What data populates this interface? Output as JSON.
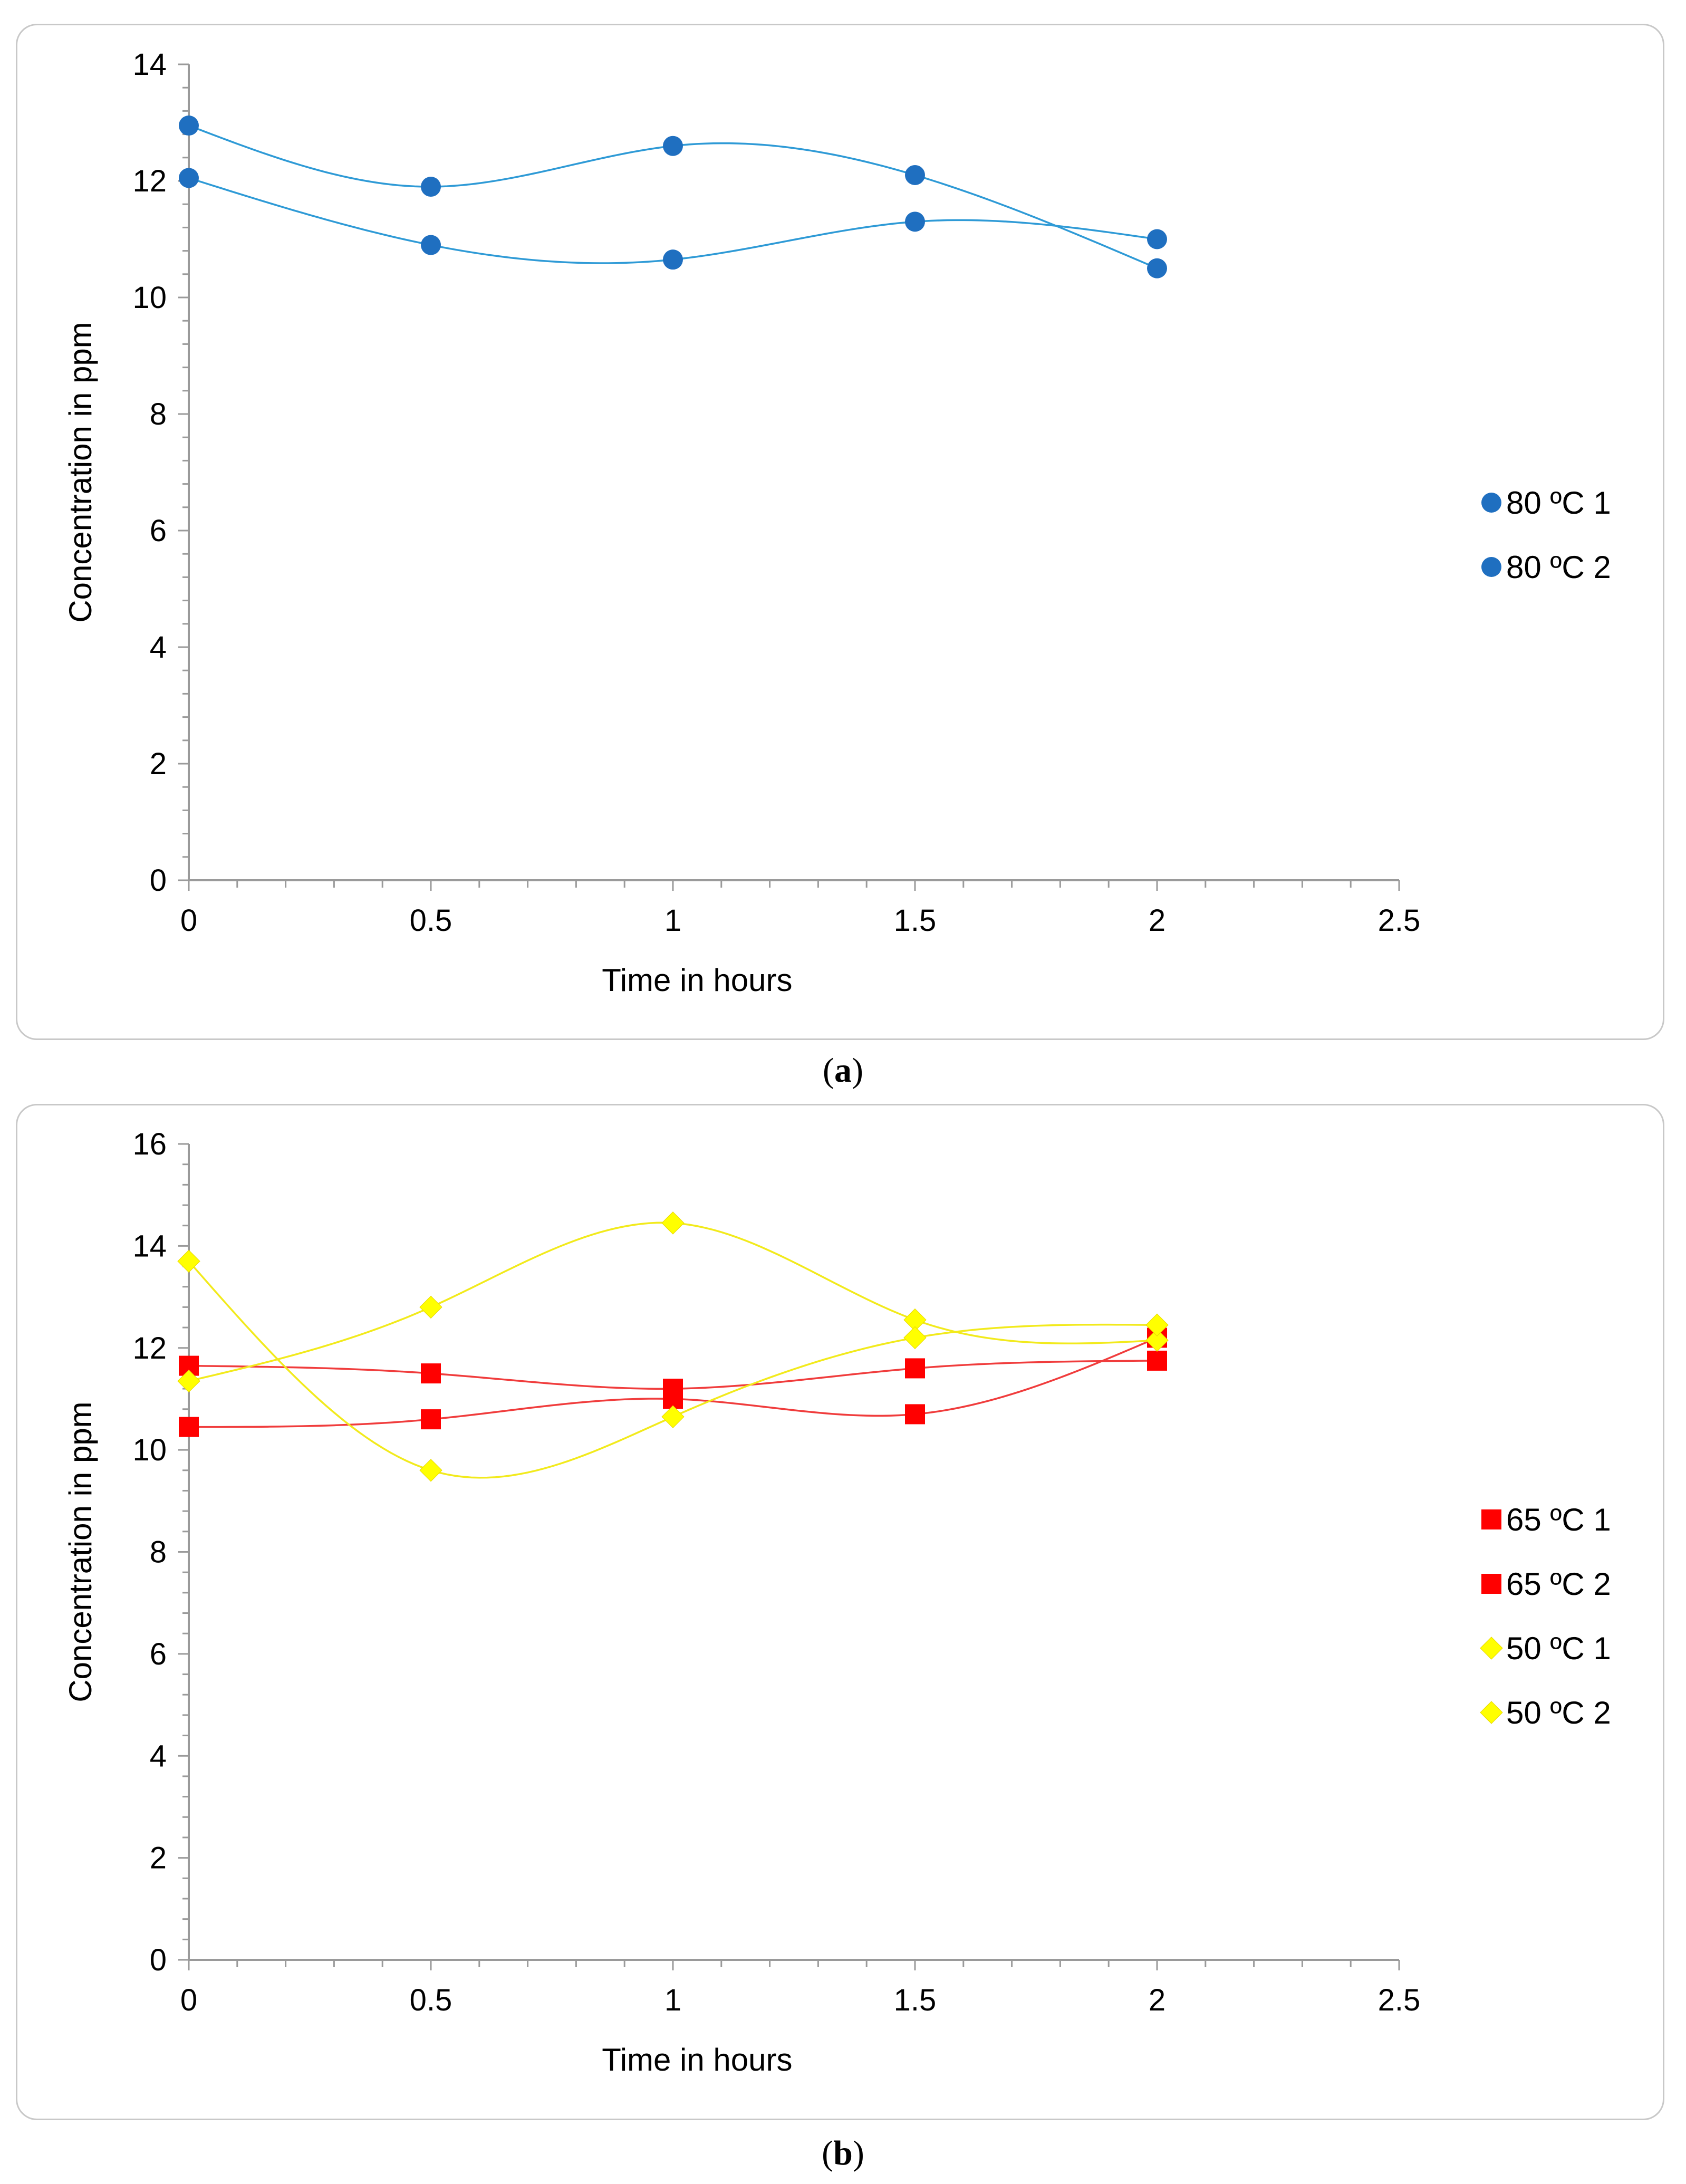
{
  "chart_data": [
    {
      "panel": "a",
      "type": "scatter",
      "caption_letter": "a",
      "xlabel": "Time in hours",
      "ylabel": "Concentration in ppm",
      "xlim": [
        0,
        2.5
      ],
      "ylim": [
        0,
        14
      ],
      "xticks": [
        "0",
        "0.5",
        "1",
        "1.5",
        "2",
        "2.5"
      ],
      "yticks": [
        "0",
        "2",
        "4",
        "6",
        "8",
        "10",
        "12",
        "14"
      ],
      "xtick_values": [
        0,
        0.5,
        1,
        1.5,
        2,
        2.5
      ],
      "ytick_values": [
        0,
        2,
        4,
        6,
        8,
        10,
        12,
        14
      ],
      "legend_position": "right",
      "series": [
        {
          "name": "80 ºC 1",
          "marker": "circle",
          "color": "#1f6fc0",
          "line_color": "#2e9ad6",
          "x": [
            0,
            0.5,
            1,
            1.5,
            2
          ],
          "y": [
            12.95,
            11.9,
            12.6,
            12.1,
            10.5
          ]
        },
        {
          "name": "80 ºC 2",
          "marker": "circle",
          "color": "#1f6fc0",
          "line_color": "#2e9ad6",
          "x": [
            0,
            0.5,
            1,
            1.5,
            2
          ],
          "y": [
            12.05,
            10.9,
            10.65,
            11.3,
            11.0
          ]
        }
      ]
    },
    {
      "panel": "b",
      "type": "scatter",
      "caption_letter": "b",
      "xlabel": "Time in hours",
      "ylabel": "Concentration in ppm",
      "xlim": [
        0,
        2.5
      ],
      "ylim": [
        0,
        16
      ],
      "xticks": [
        "0",
        "0.5",
        "1",
        "1.5",
        "2",
        "2.5"
      ],
      "yticks": [
        "0",
        "2",
        "4",
        "6",
        "8",
        "10",
        "12",
        "14",
        "16"
      ],
      "xtick_values": [
        0,
        0.5,
        1,
        1.5,
        2,
        2.5
      ],
      "ytick_values": [
        0,
        2,
        4,
        6,
        8,
        10,
        12,
        14,
        16
      ],
      "legend_position": "right",
      "series": [
        {
          "name": "65 ºC 1",
          "marker": "square",
          "color": "#ff0000",
          "line_color": "#f03c3c",
          "x": [
            0,
            0.5,
            1,
            1.5,
            2
          ],
          "y": [
            11.65,
            11.5,
            11.2,
            11.6,
            11.75
          ]
        },
        {
          "name": "65 ºC 2",
          "marker": "square",
          "color": "#ff0000",
          "line_color": "#f03c3c",
          "x": [
            0,
            0.5,
            1,
            1.5,
            2
          ],
          "y": [
            10.45,
            10.6,
            11.0,
            10.7,
            12.2
          ]
        },
        {
          "name": "50 ºC 1",
          "marker": "diamond",
          "color": "#ffff00",
          "line_color": "#f2ea1c",
          "x": [
            0,
            0.5,
            1,
            1.5,
            2
          ],
          "y": [
            11.35,
            12.8,
            14.45,
            12.55,
            12.15
          ]
        },
        {
          "name": "50 ºC 2",
          "marker": "diamond",
          "color": "#ffff00",
          "line_color": "#f2ea1c",
          "x": [
            0,
            0.5,
            1,
            1.5,
            2
          ],
          "y": [
            13.7,
            9.6,
            10.65,
            12.2,
            12.45
          ]
        }
      ]
    }
  ]
}
